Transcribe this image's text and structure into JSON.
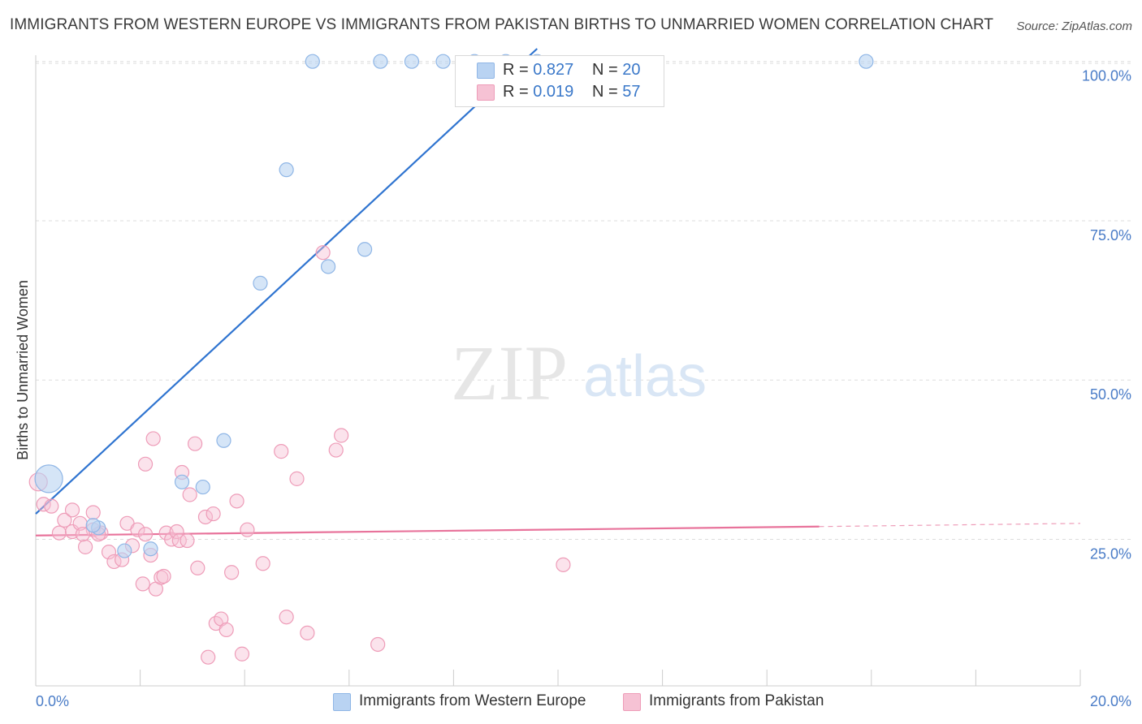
{
  "title": "IMMIGRANTS FROM WESTERN EUROPE VS IMMIGRANTS FROM PAKISTAN BIRTHS TO UNMARRIED WOMEN CORRELATION CHART",
  "source": "Source: ZipAtlas.com",
  "watermark": {
    "zip": "ZIP",
    "atlas": "atlas"
  },
  "legend": {
    "series1": {
      "r_label": "R = ",
      "r_value": "0.827",
      "n_label": "N = ",
      "n_value": "20"
    },
    "series2": {
      "r_label": "R = ",
      "r_value": "0.019",
      "n_label": "N = ",
      "n_value": "57"
    }
  },
  "bottom_legend": {
    "series1": "Immigrants from Western Europe",
    "series2": "Immigrants from Pakistan"
  },
  "colors": {
    "blue_fill": "#b9d3f2",
    "blue_stroke": "#8fb6e6",
    "blue_line": "#2f74d0",
    "pink_fill": "#f6c2d4",
    "pink_stroke": "#ee9cb8",
    "pink_line": "#e8739b",
    "tick_text": "#4a7cc7",
    "grid": "#dddddd"
  },
  "chart_data": {
    "type": "scatter",
    "title": "IMMIGRANTS FROM WESTERN EUROPE VS IMMIGRANTS FROM PAKISTAN BIRTHS TO UNMARRIED WOMEN CORRELATION CHART",
    "xlabel": "",
    "ylabel": "Births to Unmarried Women",
    "xlim": [
      0,
      20
    ],
    "ylim": [
      2,
      102
    ],
    "x_tick_labels": [
      "0.0%",
      "20.0%"
    ],
    "y_ticks": [
      25,
      50,
      75,
      100
    ],
    "y_tick_labels": [
      "25.0%",
      "50.0%",
      "75.0%",
      "100.0%"
    ],
    "series": [
      {
        "name": "Immigrants from Western Europe",
        "color": "#b9d3f2",
        "points": [
          [
            0.25,
            34.5
          ],
          [
            1.2,
            26.8
          ],
          [
            1.7,
            23.2
          ],
          [
            2.2,
            23.5
          ],
          [
            2.8,
            34.0
          ],
          [
            3.2,
            33.2
          ],
          [
            3.6,
            40.5
          ],
          [
            4.3,
            65.2
          ],
          [
            4.8,
            83.0
          ],
          [
            5.3,
            100
          ],
          [
            5.6,
            67.8
          ],
          [
            6.3,
            70.5
          ],
          [
            6.6,
            100
          ],
          [
            7.2,
            100
          ],
          [
            7.8,
            100
          ],
          [
            8.4,
            100
          ],
          [
            9.0,
            100
          ],
          [
            9.6,
            100
          ],
          [
            15.9,
            100
          ],
          [
            1.1,
            27.2
          ]
        ],
        "trend": {
          "x1": 0.0,
          "y1": 29.0,
          "x2": 9.6,
          "y2": 102.0
        }
      },
      {
        "name": "Immigrants from Pakistan",
        "color": "#f6c2d4",
        "points": [
          [
            0.05,
            34.0
          ],
          [
            0.15,
            30.5
          ],
          [
            0.3,
            30.2
          ],
          [
            0.45,
            26.0
          ],
          [
            0.55,
            28.0
          ],
          [
            0.7,
            26.2
          ],
          [
            0.85,
            27.5
          ],
          [
            0.7,
            29.6
          ],
          [
            0.95,
            23.8
          ],
          [
            1.1,
            26.5
          ],
          [
            1.25,
            26.0
          ],
          [
            1.4,
            23.0
          ],
          [
            1.1,
            29.2
          ],
          [
            1.5,
            21.5
          ],
          [
            1.65,
            21.8
          ],
          [
            1.75,
            27.5
          ],
          [
            1.85,
            24.0
          ],
          [
            1.95,
            26.5
          ],
          [
            2.05,
            18.0
          ],
          [
            2.1,
            25.8
          ],
          [
            2.2,
            22.5
          ],
          [
            2.3,
            17.2
          ],
          [
            2.4,
            19.0
          ],
          [
            2.1,
            36.8
          ],
          [
            2.25,
            40.8
          ],
          [
            2.45,
            19.2
          ],
          [
            2.5,
            26.0
          ],
          [
            2.6,
            25.0
          ],
          [
            2.7,
            26.2
          ],
          [
            2.75,
            24.8
          ],
          [
            2.8,
            35.5
          ],
          [
            2.95,
            32.0
          ],
          [
            3.05,
            40.0
          ],
          [
            3.1,
            20.5
          ],
          [
            3.25,
            28.5
          ],
          [
            3.3,
            6.5
          ],
          [
            3.4,
            29.0
          ],
          [
            3.45,
            11.8
          ],
          [
            3.55,
            12.5
          ],
          [
            3.65,
            10.8
          ],
          [
            3.75,
            19.8
          ],
          [
            3.85,
            31.0
          ],
          [
            3.95,
            7.0
          ],
          [
            4.05,
            26.5
          ],
          [
            4.35,
            21.2
          ],
          [
            4.7,
            38.8
          ],
          [
            4.8,
            12.8
          ],
          [
            5.0,
            34.5
          ],
          [
            5.2,
            10.3
          ],
          [
            5.5,
            70.0
          ],
          [
            5.75,
            39.0
          ],
          [
            5.85,
            41.3
          ],
          [
            6.55,
            8.5
          ],
          [
            10.1,
            21.0
          ],
          [
            2.9,
            24.8
          ],
          [
            1.2,
            25.8
          ],
          [
            0.9,
            25.8
          ]
        ],
        "trend": {
          "x1": 0.0,
          "y1": 25.6,
          "x2": 15.0,
          "y2": 27.0
        },
        "trend_dashed_extension": {
          "x1": 15.0,
          "y1": 27.0,
          "x2": 20.0,
          "y2": 27.5
        }
      }
    ]
  }
}
